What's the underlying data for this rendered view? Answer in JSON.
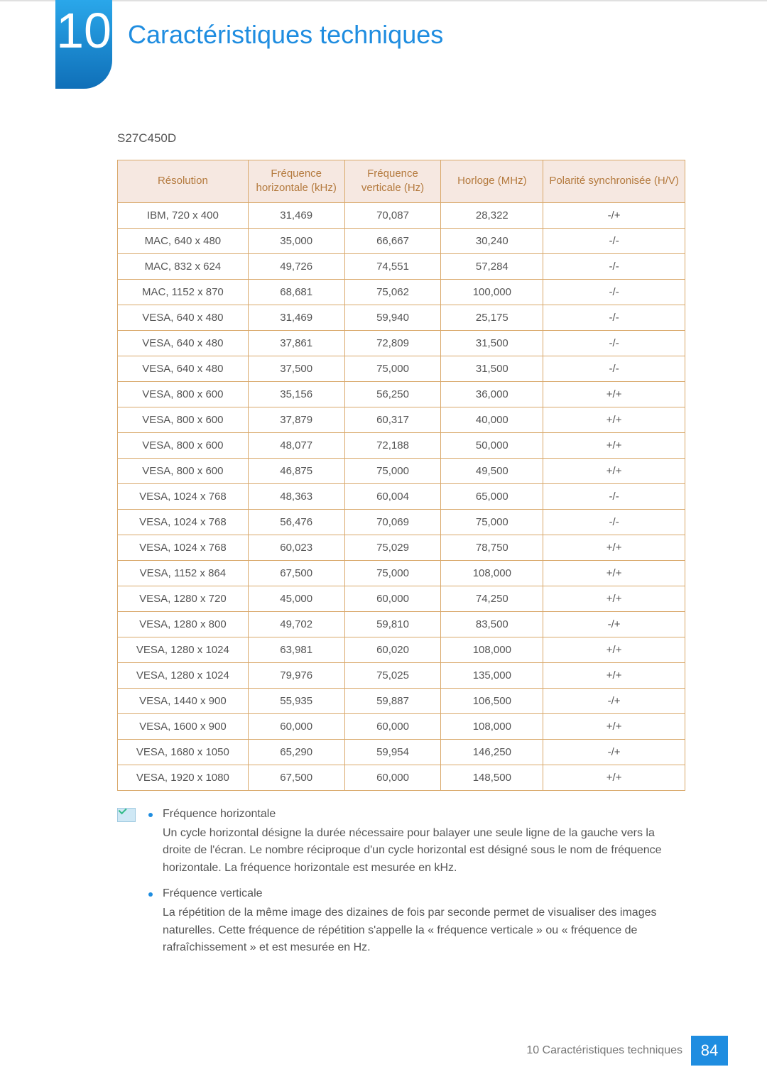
{
  "header": {
    "chapter_number": "10",
    "title": "Caractéristiques techniques",
    "title_color": "#1f8de0"
  },
  "model": "S27C450D",
  "spec_table": {
    "type": "table",
    "header_bg": "#f6e8e1",
    "header_fg": "#b47a3e",
    "border_color": "#d9a86a",
    "cell_fg": "#555555",
    "column_widths_pct": [
      23,
      17,
      17,
      18,
      25
    ],
    "columns": [
      "Résolution",
      "Fréquence horizontale (kHz)",
      "Fréquence verticale (Hz)",
      "Horloge (MHz)",
      "Polarité synchronisée (H/V)"
    ],
    "rows": [
      [
        "IBM, 720 x 400",
        "31,469",
        "70,087",
        "28,322",
        "-/+"
      ],
      [
        "MAC, 640 x 480",
        "35,000",
        "66,667",
        "30,240",
        "-/-"
      ],
      [
        "MAC, 832 x 624",
        "49,726",
        "74,551",
        "57,284",
        "-/-"
      ],
      [
        "MAC, 1152 x 870",
        "68,681",
        "75,062",
        "100,000",
        "-/-"
      ],
      [
        "VESA, 640 x 480",
        "31,469",
        "59,940",
        "25,175",
        "-/-"
      ],
      [
        "VESA, 640 x 480",
        "37,861",
        "72,809",
        "31,500",
        "-/-"
      ],
      [
        "VESA, 640 x 480",
        "37,500",
        "75,000",
        "31,500",
        "-/-"
      ],
      [
        "VESA, 800 x 600",
        "35,156",
        "56,250",
        "36,000",
        "+/+"
      ],
      [
        "VESA, 800 x 600",
        "37,879",
        "60,317",
        "40,000",
        "+/+"
      ],
      [
        "VESA, 800 x 600",
        "48,077",
        "72,188",
        "50,000",
        "+/+"
      ],
      [
        "VESA, 800 x 600",
        "46,875",
        "75,000",
        "49,500",
        "+/+"
      ],
      [
        "VESA, 1024 x 768",
        "48,363",
        "60,004",
        "65,000",
        "-/-"
      ],
      [
        "VESA, 1024 x 768",
        "56,476",
        "70,069",
        "75,000",
        "-/-"
      ],
      [
        "VESA, 1024 x 768",
        "60,023",
        "75,029",
        "78,750",
        "+/+"
      ],
      [
        "VESA, 1152 x 864",
        "67,500",
        "75,000",
        "108,000",
        "+/+"
      ],
      [
        "VESA, 1280 x 720",
        "45,000",
        "60,000",
        "74,250",
        "+/+"
      ],
      [
        "VESA, 1280 x 800",
        "49,702",
        "59,810",
        "83,500",
        "-/+"
      ],
      [
        "VESA, 1280 x 1024",
        "63,981",
        "60,020",
        "108,000",
        "+/+"
      ],
      [
        "VESA, 1280 x 1024",
        "79,976",
        "75,025",
        "135,000",
        "+/+"
      ],
      [
        "VESA, 1440 x 900",
        "55,935",
        "59,887",
        "106,500",
        "-/+"
      ],
      [
        "VESA, 1600 x 900",
        "60,000",
        "60,000",
        "108,000",
        "+/+"
      ],
      [
        "VESA, 1680 x 1050",
        "65,290",
        "59,954",
        "146,250",
        "-/+"
      ],
      [
        "VESA, 1920 x 1080",
        "67,500",
        "60,000",
        "148,500",
        "+/+"
      ]
    ]
  },
  "notes": [
    {
      "term": "Fréquence horizontale",
      "body": "Un cycle horizontal désigne la durée nécessaire pour balayer une seule ligne de la gauche vers la droite de l'écran. Le nombre réciproque d'un cycle horizontal est désigné sous le nom de fréquence horizontale. La fréquence horizontale est mesurée en kHz."
    },
    {
      "term": "Fréquence verticale",
      "body": "La répétition de la même image des dizaines de fois par seconde permet de visualiser des images naturelles. Cette fréquence de répétition s'appelle la « fréquence verticale » ou « fréquence de rafraîchissement » et est mesurée en Hz."
    }
  ],
  "footer": {
    "text": "10 Caractéristiques techniques",
    "page": "84",
    "page_bg": "#1f8de0"
  }
}
